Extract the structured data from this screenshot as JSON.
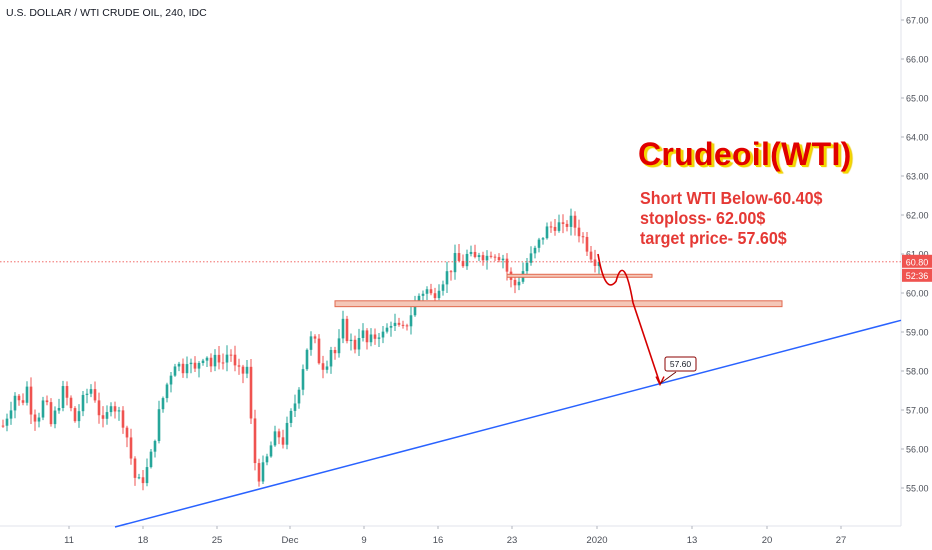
{
  "symbol": {
    "title": "U.S. DOLLAR / WTI CRUDE OIL, 240, IDC"
  },
  "annotations": {
    "headline": "Crudeoil(WTI)",
    "line1": "Short WTI Below-60.40$",
    "line2": "stoploss- 62.00$",
    "line3": "target price- 57.60$",
    "target_tag": "57.60"
  },
  "price_scale": {
    "last_price": "60.80",
    "countdown": "52:36",
    "last_price_value": 60.8
  },
  "colors": {
    "up": "#26a69a",
    "down": "#ef5350",
    "zone_fill": "#f4c7b8",
    "zone_border": "#e26a4f",
    "trendline": "#2962ff",
    "path": "#d50000",
    "headline": "#e00000",
    "headline_shadow": "#f5d800",
    "note": "#e53935"
  },
  "chart_data": {
    "type": "candlestick",
    "title": "",
    "xlabel": "",
    "ylabel": "",
    "ylim": [
      54.2,
      67.3
    ],
    "y_ticks": [
      55.0,
      56.0,
      57.0,
      58.0,
      59.0,
      60.0,
      61.0,
      62.0,
      63.0,
      64.0,
      65.0,
      66.0,
      67.0
    ],
    "x_ticks": [
      "11",
      "18",
      "25",
      "Dec",
      "9",
      "16",
      "23",
      "2020",
      "13",
      "20",
      "27"
    ],
    "grid": false,
    "close_path": [
      56.6,
      57.0,
      57.4,
      57.1,
      57.6,
      56.8,
      56.9,
      57.3,
      56.6,
      57.0,
      57.5,
      57.2,
      56.7,
      57.1,
      57.4,
      57.6,
      57.0,
      56.5,
      57.3,
      57.0,
      56.8,
      56.2,
      55.3,
      55.1,
      55.4,
      55.9,
      56.8,
      57.4,
      57.9,
      58.3,
      58.0,
      58.4,
      57.9,
      58.3,
      58.5,
      58.1,
      58.4,
      58.2,
      58.6,
      58.0,
      57.9,
      58.1,
      55.8,
      55.3,
      55.6,
      56.1,
      56.4,
      56.2,
      56.7,
      57.2,
      57.9,
      58.6,
      58.9,
      58.3,
      58.1,
      58.6,
      58.4,
      59.2,
      58.8,
      58.6,
      59.1,
      58.7,
      58.8,
      59.0,
      58.9,
      59.3,
      59.1,
      59.0,
      59.3,
      59.7,
      60.0,
      60.1,
      59.9,
      60.2,
      60.4,
      60.6,
      60.9,
      60.7,
      61.0,
      60.8,
      61.1,
      60.9,
      61.1,
      61.0,
      60.9,
      60.3,
      60.2,
      60.5,
      60.8,
      61.0,
      61.3,
      61.6,
      61.7,
      61.8,
      61.6,
      61.9,
      61.7,
      61.5,
      61.2,
      60.9,
      60.8
    ],
    "last_close": 60.8,
    "support_zones": [
      {
        "low": 60.43,
        "high": 60.48
      },
      {
        "low": 59.65,
        "high": 59.8
      }
    ],
    "trendline": {
      "from_price": 54.0,
      "to_price": 59.3
    },
    "projected_path": [
      61.0,
      60.4,
      60.5,
      59.7,
      57.6
    ],
    "target_price": 57.6,
    "target_label": "57.60"
  }
}
